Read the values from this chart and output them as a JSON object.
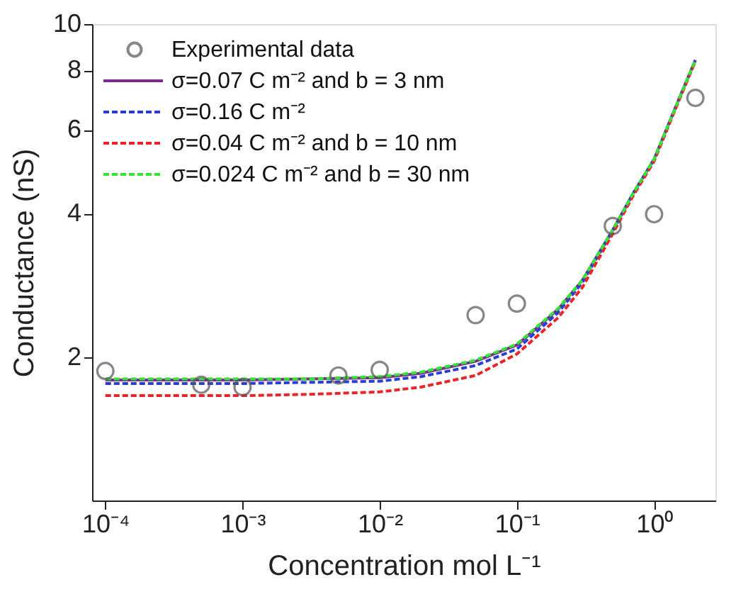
{
  "chart_data": {
    "type": "line",
    "xlabel": "Concentration mol L⁻¹",
    "ylabel": "Conductance (nS)",
    "log": "xy",
    "grid": false,
    "legend": "top left",
    "xlim": [
      8e-05,
      2.8
    ],
    "ylim": [
      1,
      10
    ],
    "xticks": [
      {
        "value": 0.0001,
        "label": "10⁻⁴"
      },
      {
        "value": 0.001,
        "label": "10⁻³"
      },
      {
        "value": 0.01,
        "label": "10⁻²"
      },
      {
        "value": 0.1,
        "label": "10⁻¹"
      },
      {
        "value": 1,
        "label": "10⁰"
      }
    ],
    "yticks": [
      2,
      4,
      6,
      8,
      10
    ],
    "series": [
      {
        "name": "Experimental data",
        "type": "scatter",
        "marker": "circle",
        "color": "#555555",
        "x": [
          0.0001,
          0.0005,
          0.001,
          0.005,
          0.01,
          0.05,
          0.1,
          0.5,
          1,
          2
        ],
        "values": [
          1.87,
          1.75,
          1.73,
          1.83,
          1.88,
          2.45,
          2.59,
          3.77,
          3.99,
          7.0
        ]
      },
      {
        "name": "σ=0.07 C m⁻² and b = 3 nm",
        "color": "#7b2a8c",
        "line_style": "solid",
        "x": [
          0.0001,
          0.001,
          0.003,
          0.01,
          0.02,
          0.05,
          0.1,
          0.2,
          0.3,
          0.5,
          0.7,
          1,
          1.5,
          2
        ],
        "values": [
          1.79,
          1.79,
          1.8,
          1.81,
          1.85,
          1.96,
          2.12,
          2.52,
          2.9,
          3.7,
          4.4,
          5.2,
          6.9,
          8.4
        ]
      },
      {
        "name": "σ=0.16 C m⁻²",
        "color": "#2b3bd6",
        "line_style": "dashed",
        "x": [
          0.0001,
          0.001,
          0.003,
          0.01,
          0.02,
          0.05,
          0.1,
          0.2,
          0.3,
          0.5,
          0.7,
          1,
          1.5,
          2
        ],
        "values": [
          1.76,
          1.76,
          1.77,
          1.78,
          1.82,
          1.92,
          2.08,
          2.48,
          2.87,
          3.68,
          4.4,
          5.2,
          6.9,
          8.4
        ]
      },
      {
        "name": "σ=0.04 C m⁻² and b = 10 nm",
        "color": "#e8262a",
        "line_style": "dashed",
        "x": [
          0.0001,
          0.001,
          0.003,
          0.01,
          0.02,
          0.05,
          0.1,
          0.2,
          0.3,
          0.5,
          0.7,
          1,
          1.5,
          2
        ],
        "values": [
          1.66,
          1.66,
          1.67,
          1.69,
          1.73,
          1.83,
          2.03,
          2.42,
          2.8,
          3.63,
          4.35,
          5.15,
          6.85,
          8.35
        ]
      },
      {
        "name": "σ=0.024 C m⁻² and b = 30 nm",
        "color": "#33e633",
        "line_style": "dashed",
        "x": [
          0.0001,
          0.001,
          0.003,
          0.01,
          0.02,
          0.05,
          0.1,
          0.2,
          0.3,
          0.5,
          0.7,
          1,
          1.5,
          2
        ],
        "values": [
          1.8,
          1.8,
          1.8,
          1.82,
          1.86,
          1.97,
          2.13,
          2.53,
          2.9,
          3.7,
          4.4,
          5.2,
          6.9,
          8.4
        ]
      }
    ]
  }
}
